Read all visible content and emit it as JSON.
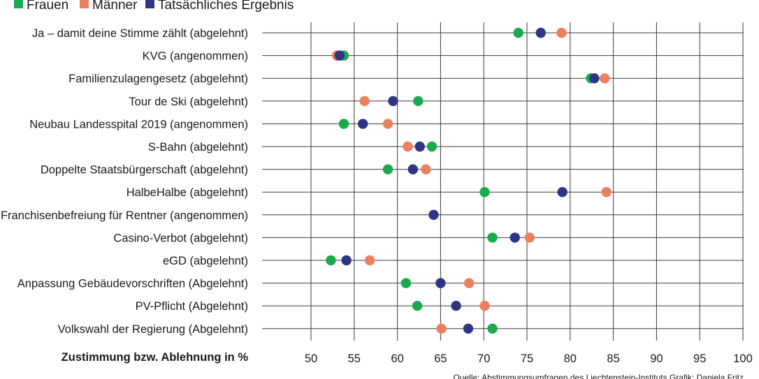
{
  "chart_data": {
    "type": "scatter",
    "legend": [
      {
        "key": "frauen",
        "name": "Frauen",
        "color": "#1aaa4e"
      },
      {
        "key": "maenner",
        "name": "Männer",
        "color": "#ec7f5e"
      },
      {
        "key": "ergebnis",
        "name": "Tatsächliches Ergebnis",
        "color": "#2f3584"
      }
    ],
    "categories": [
      "Ja – damit deine Stimme zählt (abgelehnt)",
      "KVG (angenommen)",
      "Familienzulagengesetz (abgelehnt)",
      "Tour de Ski (abgelehnt)",
      "Neubau Landesspital 2019 (angenommen)",
      "S-Bahn (abgelehnt)",
      "Doppelte Staatsbürgerschaft (abgelehnt)",
      "HalbeHalbe (abgelehnt)",
      "Franchisenbefreiung für Rentner (angenommen)",
      "Casino-Verbot (abgelehnt)",
      "eGD (abgelehnt)",
      "Anpassung Gebäudevorschriften (Abgelehnt)",
      "PV-Pflicht (Abgelehnt)",
      "Volkswahl der Regierung (Abgelehnt)"
    ],
    "series": [
      {
        "key": "maenner",
        "name": "Männer",
        "color": "#ec7f5e",
        "values": [
          79.0,
          53.0,
          84.0,
          56.2,
          58.9,
          61.2,
          63.3,
          84.2,
          null,
          75.3,
          56.8,
          68.3,
          70.1,
          65.1
        ]
      },
      {
        "key": "frauen",
        "name": "Frauen",
        "color": "#1aaa4e",
        "values": [
          74.0,
          53.8,
          82.4,
          62.4,
          53.8,
          64.0,
          58.9,
          70.1,
          null,
          71.0,
          52.3,
          61.0,
          62.3,
          71.0
        ]
      },
      {
        "key": "ergebnis",
        "name": "Tatsächliches Ergebnis",
        "color": "#2f3584",
        "values": [
          76.6,
          53.3,
          82.8,
          59.5,
          56.0,
          62.6,
          61.8,
          79.1,
          64.2,
          73.6,
          54.1,
          65.0,
          66.8,
          68.2
        ]
      }
    ],
    "xticks": [
      50,
      55,
      60,
      65,
      70,
      75,
      80,
      85,
      90,
      95,
      100
    ],
    "xlim": [
      47,
      101
    ],
    "xlabel": "Zustimmung bzw. Ablehnung in %",
    "grid": true,
    "legend_position": "top-left",
    "source": "Quelle: Abstimmungsumfragen des Liechtenstein-Instituts   Grafik: Daniela Fritz"
  }
}
